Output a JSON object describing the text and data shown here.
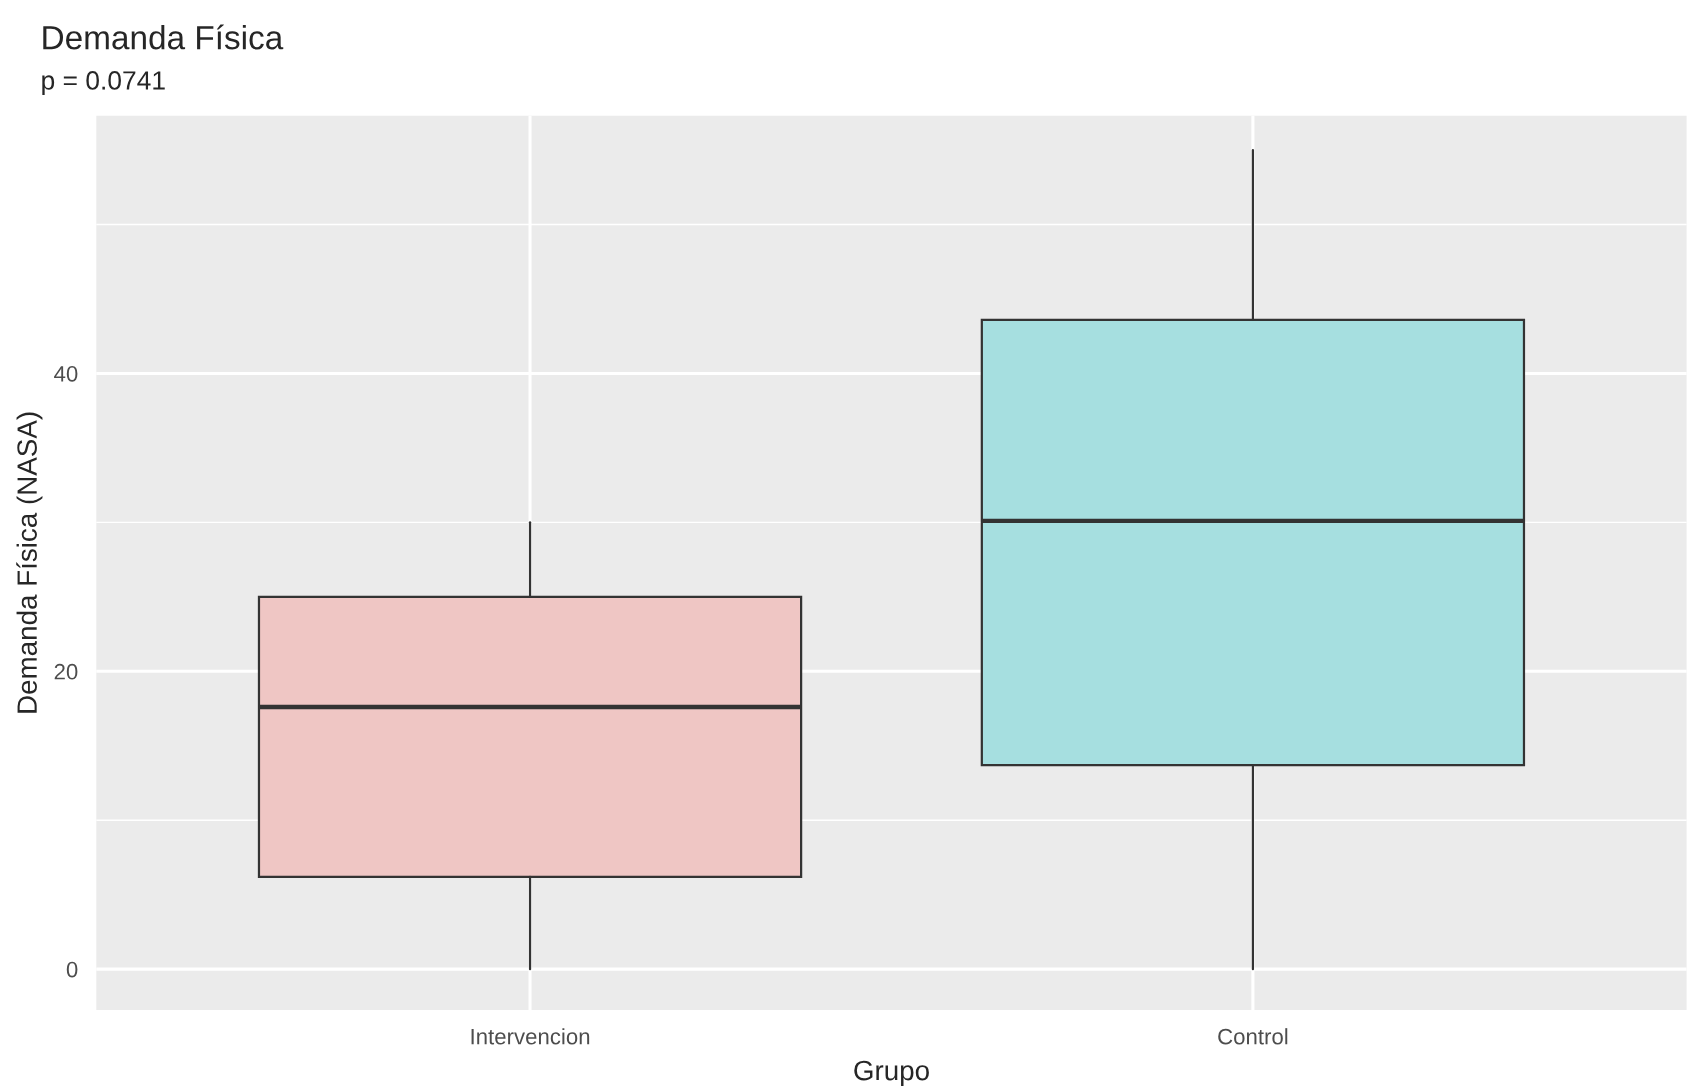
{
  "chart_data": {
    "type": "box",
    "title": "Demanda Física",
    "subtitle": "p = 0.0741",
    "xlabel": "Grupo",
    "ylabel": "Demanda Física (NASA)",
    "categories": [
      "Intervencion",
      "Control"
    ],
    "boxes": [
      {
        "low": 0,
        "q1": 6.2,
        "median": 17.6,
        "q3": 25.0,
        "high": 30
      },
      {
        "low": 0,
        "q1": 13.7,
        "median": 30.1,
        "q3": 43.6,
        "high": 55
      }
    ],
    "colors": [
      "#efc6c4",
      "#a6dfe0"
    ],
    "ylim": [
      -2.75,
      57.3
    ],
    "yticks": [
      0,
      20,
      40
    ],
    "grid": true,
    "legend": false
  }
}
